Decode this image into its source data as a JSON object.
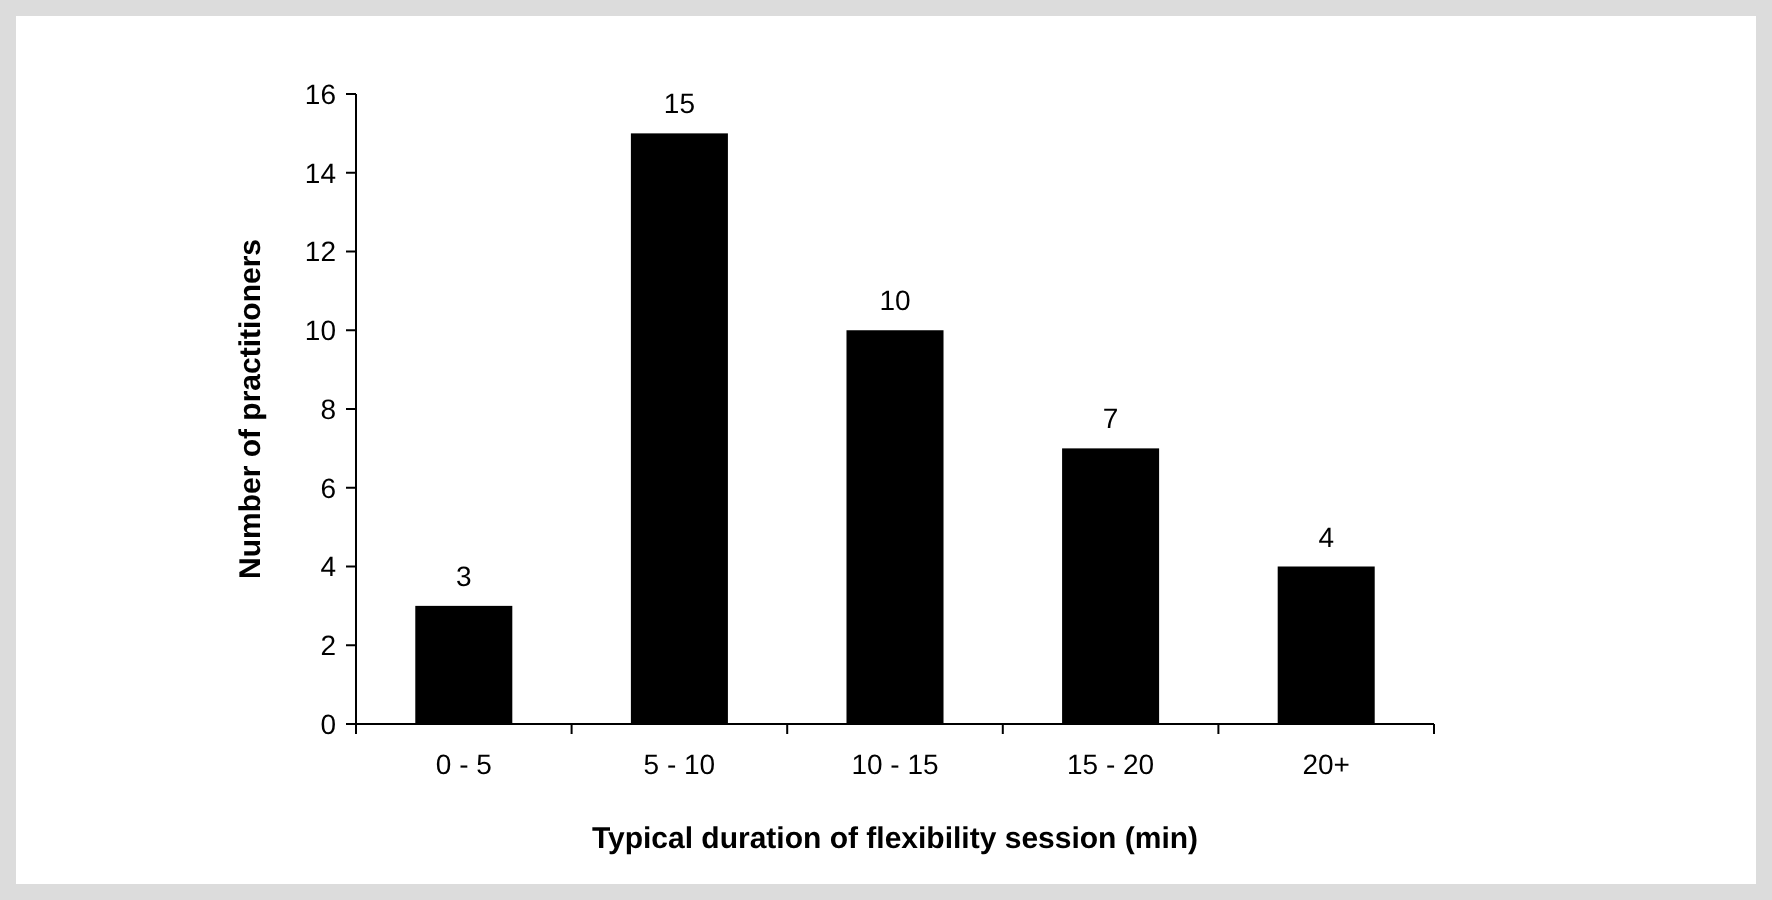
{
  "chart_data": {
    "type": "bar",
    "xlabel": "Typical duration of flexibility session (min)",
    "ylabel": "Number of practitioners",
    "categories": [
      "0 - 5",
      "5 - 10",
      "10 - 15",
      "15 - 20",
      "20+"
    ],
    "values": [
      3,
      15,
      10,
      7,
      4
    ],
    "color": "#000000",
    "ylim": [
      0,
      16
    ],
    "yticks": [
      0,
      2,
      4,
      6,
      8,
      10,
      12,
      14,
      16
    ],
    "data_labels": true,
    "grid": false
  }
}
